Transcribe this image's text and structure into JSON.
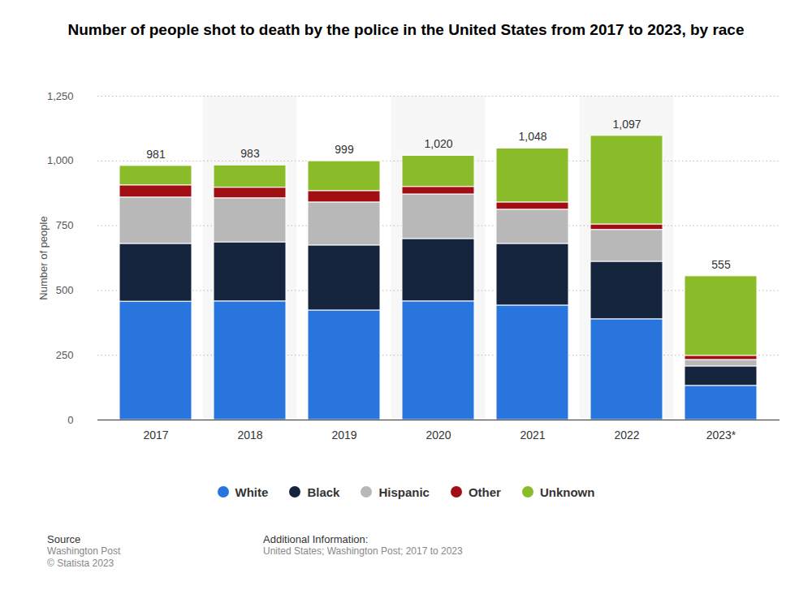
{
  "chart_data": {
    "type": "bar",
    "stacked": true,
    "title": "Number of people shot to death by the police in the United States from 2017 to 2023, by race",
    "ylabel": "Number of people",
    "categories": [
      "2017",
      "2018",
      "2019",
      "2020",
      "2021",
      "2022",
      "2023*"
    ],
    "series": [
      {
        "name": "White",
        "color": "#2876dd",
        "values": [
          457,
          458,
          423,
          458,
          442,
          389,
          132
        ]
      },
      {
        "name": "Black",
        "color": "#14253d",
        "values": [
          223,
          228,
          251,
          241,
          238,
          222,
          75
        ]
      },
      {
        "name": "Hispanic",
        "color": "#b8b8b8",
        "values": [
          179,
          170,
          166,
          172,
          132,
          123,
          25
        ]
      },
      {
        "name": "Other",
        "color": "#a10f15",
        "values": [
          47,
          41,
          44,
          29,
          28,
          21,
          16
        ]
      },
      {
        "name": "Unknown",
        "color": "#8abb29",
        "values": [
          75,
          86,
          115,
          120,
          208,
          342,
          307
        ]
      }
    ],
    "totals": [
      981,
      983,
      999,
      1020,
      1048,
      1097,
      555
    ],
    "total_labels": [
      "981",
      "983",
      "999",
      "1,020",
      "1,048",
      "1,097",
      "555"
    ],
    "ylim": [
      0,
      1250
    ],
    "yticks": [
      0,
      250,
      500,
      750,
      {
        "value": 1000,
        "label": "1,000"
      },
      {
        "value": 1250,
        "label": "1,250"
      }
    ],
    "grid": true,
    "legend": "bottom",
    "source_label": "Source",
    "source": [
      "Washington Post",
      "© Statista 2023"
    ],
    "additional_info_label": "Additional Information:",
    "additional_info": "United States; Washington Post; 2017 to 2023"
  }
}
